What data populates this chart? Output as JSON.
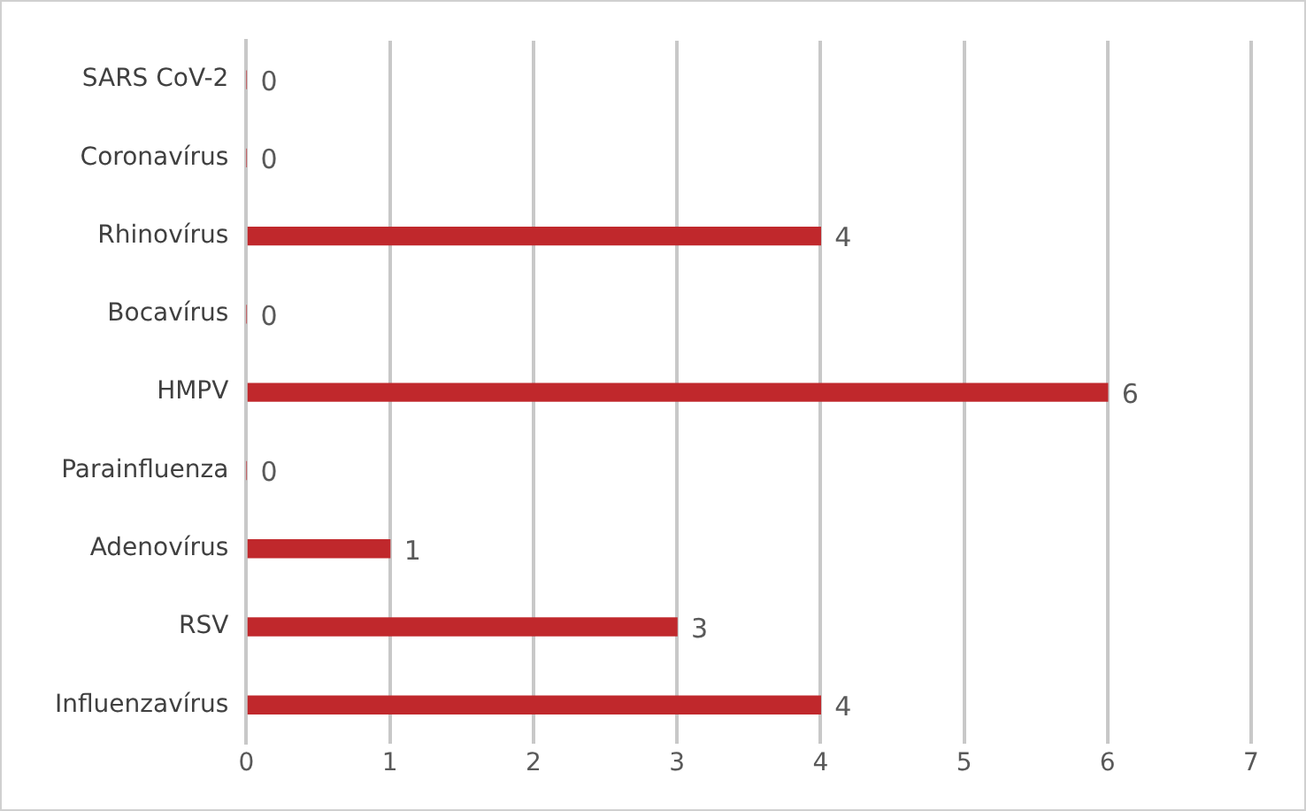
{
  "chart_data": {
    "type": "bar",
    "orientation": "horizontal",
    "categories": [
      "SARS CoV-2",
      "Coronavírus",
      "Rhinovírus",
      "Bocavírus",
      "HMPV",
      "Parainfluenza",
      "Adenovírus",
      "RSV",
      "Influenzavírus"
    ],
    "values": [
      0,
      0,
      4,
      0,
      6,
      0,
      1,
      3,
      4
    ],
    "color": "#c0282c",
    "xlim": [
      0,
      7
    ],
    "xticks": [
      0,
      1,
      2,
      3,
      4,
      5,
      6,
      7
    ],
    "grid": "x",
    "data_labels": true
  }
}
